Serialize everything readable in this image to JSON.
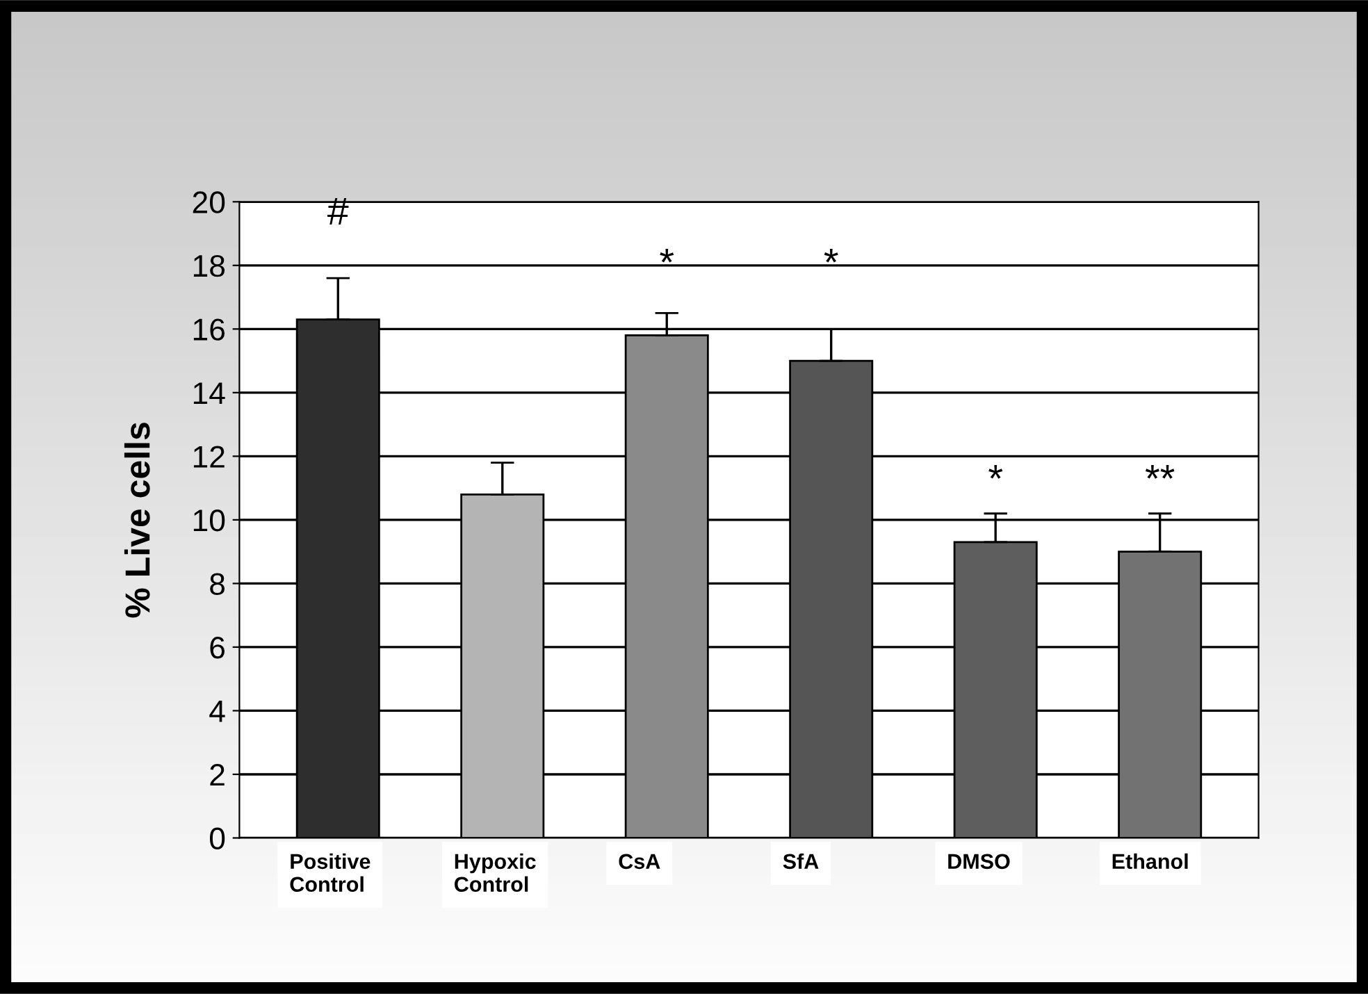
{
  "chart_data": {
    "type": "bar",
    "ylabel": "% Live cells",
    "categories": [
      "Positive\nControl",
      "Hypoxic\nControl",
      "CsA",
      "SfA",
      "DMSO",
      "Ethanol"
    ],
    "values": [
      16.3,
      10.8,
      15.8,
      15.0,
      9.3,
      9.0
    ],
    "colors": [
      "#2e2e2e",
      "#b4b4b4",
      "#8a8a8a",
      "#555555",
      "#5e5e5e",
      "#727272"
    ],
    "errors": [
      [
        16.3,
        17.6
      ],
      [
        10.8,
        11.8
      ],
      [
        15.8,
        16.5
      ],
      [
        15.0,
        16.0
      ],
      [
        9.3,
        10.2
      ],
      [
        9.0,
        10.2
      ]
    ],
    "ylim": [
      0,
      20
    ],
    "yticks": [
      0,
      2,
      4,
      6,
      8,
      10,
      12,
      14,
      16,
      18,
      20
    ],
    "grid": "y",
    "legend": false,
    "annotations": [
      "#",
      "*",
      "*",
      "*",
      "**"
    ]
  }
}
